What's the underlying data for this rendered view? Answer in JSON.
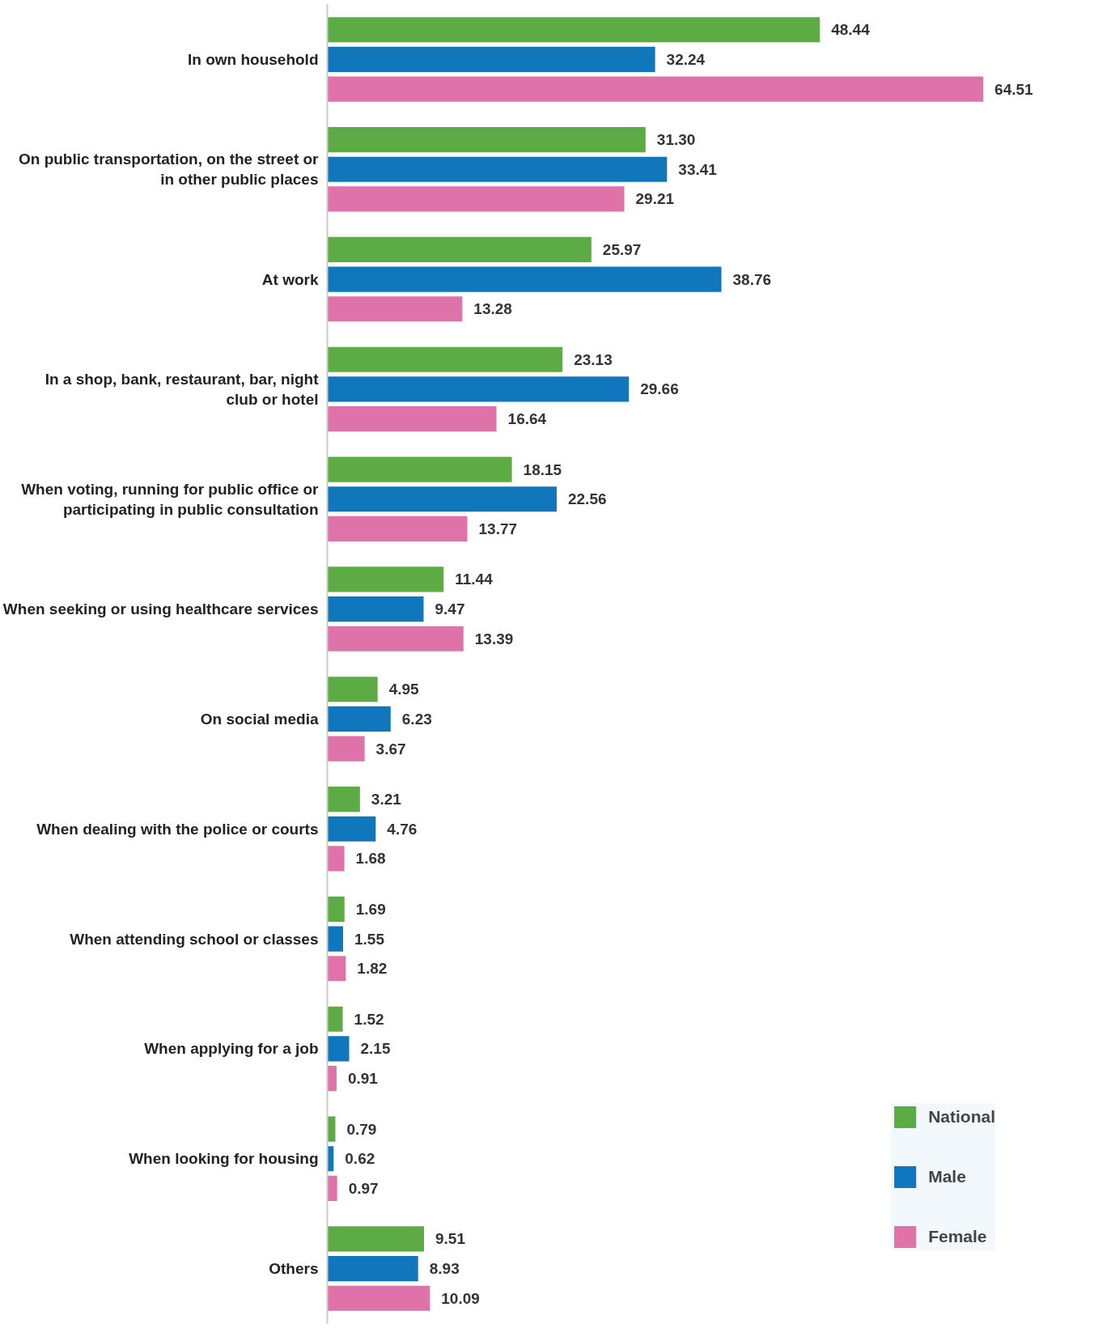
{
  "chart_data": {
    "type": "bar",
    "orientation": "horizontal",
    "data_labels": true,
    "legend": "bottom right",
    "grid": false,
    "categories": [
      "In own household",
      "On public transportation, on the street or in other public places",
      "At work",
      "In a shop, bank, restaurant, bar, night club or hotel",
      "When voting, running for public office or participating in public consultation",
      "When seeking or using healthcare services",
      "On social media",
      "When dealing with the police or courts",
      "When attending school or classes",
      "When applying for a job",
      "When looking for housing",
      "Others"
    ],
    "series": [
      {
        "name": "National",
        "color": "#5dab45",
        "values": [
          48.44,
          31.3,
          25.97,
          23.13,
          18.15,
          11.44,
          4.95,
          3.21,
          1.69,
          1.52,
          0.79,
          9.51
        ],
        "value_labels": [
          "48.44",
          "31.30",
          "25.97",
          "23.13",
          "18.15",
          "11.44",
          "4.95",
          "3.21",
          "1.69",
          "1.52",
          "0.79",
          "9.51"
        ]
      },
      {
        "name": "Male",
        "color": "#1177bc",
        "values": [
          32.24,
          33.41,
          38.76,
          29.66,
          22.56,
          9.47,
          6.23,
          4.76,
          1.55,
          2.15,
          0.62,
          8.93
        ],
        "value_labels": [
          "32.24",
          "33.41",
          "38.76",
          "29.66",
          "22.56",
          "9.47",
          "6.23",
          "4.76",
          "1.55",
          "2.15",
          "0.62",
          "8.93"
        ]
      },
      {
        "name": "Female",
        "color": "#e072aa",
        "values": [
          64.51,
          29.21,
          13.28,
          16.64,
          13.77,
          13.39,
          3.67,
          1.68,
          1.82,
          0.91,
          0.97,
          10.09
        ],
        "value_labels": [
          "64.51",
          "29.21",
          "13.28",
          "16.64",
          "13.77",
          "13.39",
          "3.67",
          "1.68",
          "1.82",
          "0.91",
          "0.97",
          "10.09"
        ]
      }
    ]
  }
}
